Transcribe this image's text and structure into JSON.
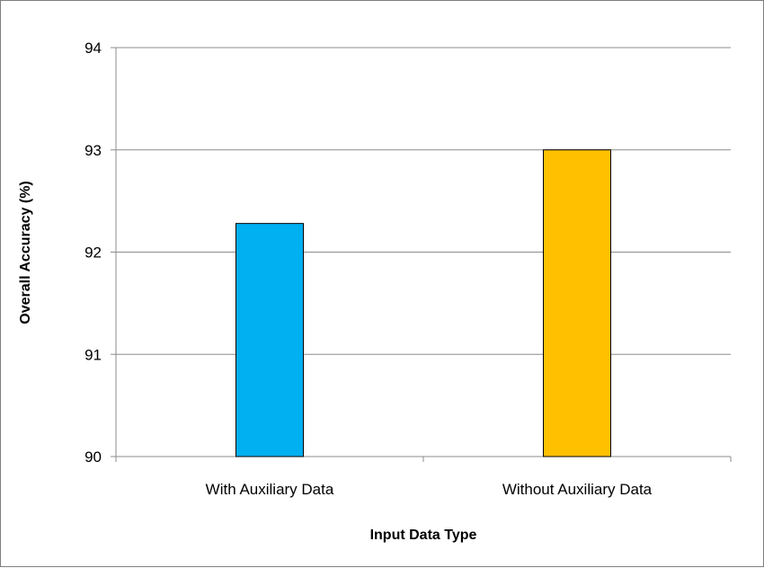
{
  "chart_data": {
    "type": "bar",
    "categories": [
      "With Auxiliary Data",
      "Without Auxiliary Data"
    ],
    "values": [
      92.28,
      93.0
    ],
    "colors": [
      "#00b0f0",
      "#ffc000"
    ],
    "xlabel": "Input Data Type",
    "ylabel": "Overall Accuracy (%)",
    "ylim": [
      90,
      94
    ],
    "yticks": [
      90,
      91,
      92,
      93,
      94
    ],
    "grid": true,
    "legend": "none"
  }
}
